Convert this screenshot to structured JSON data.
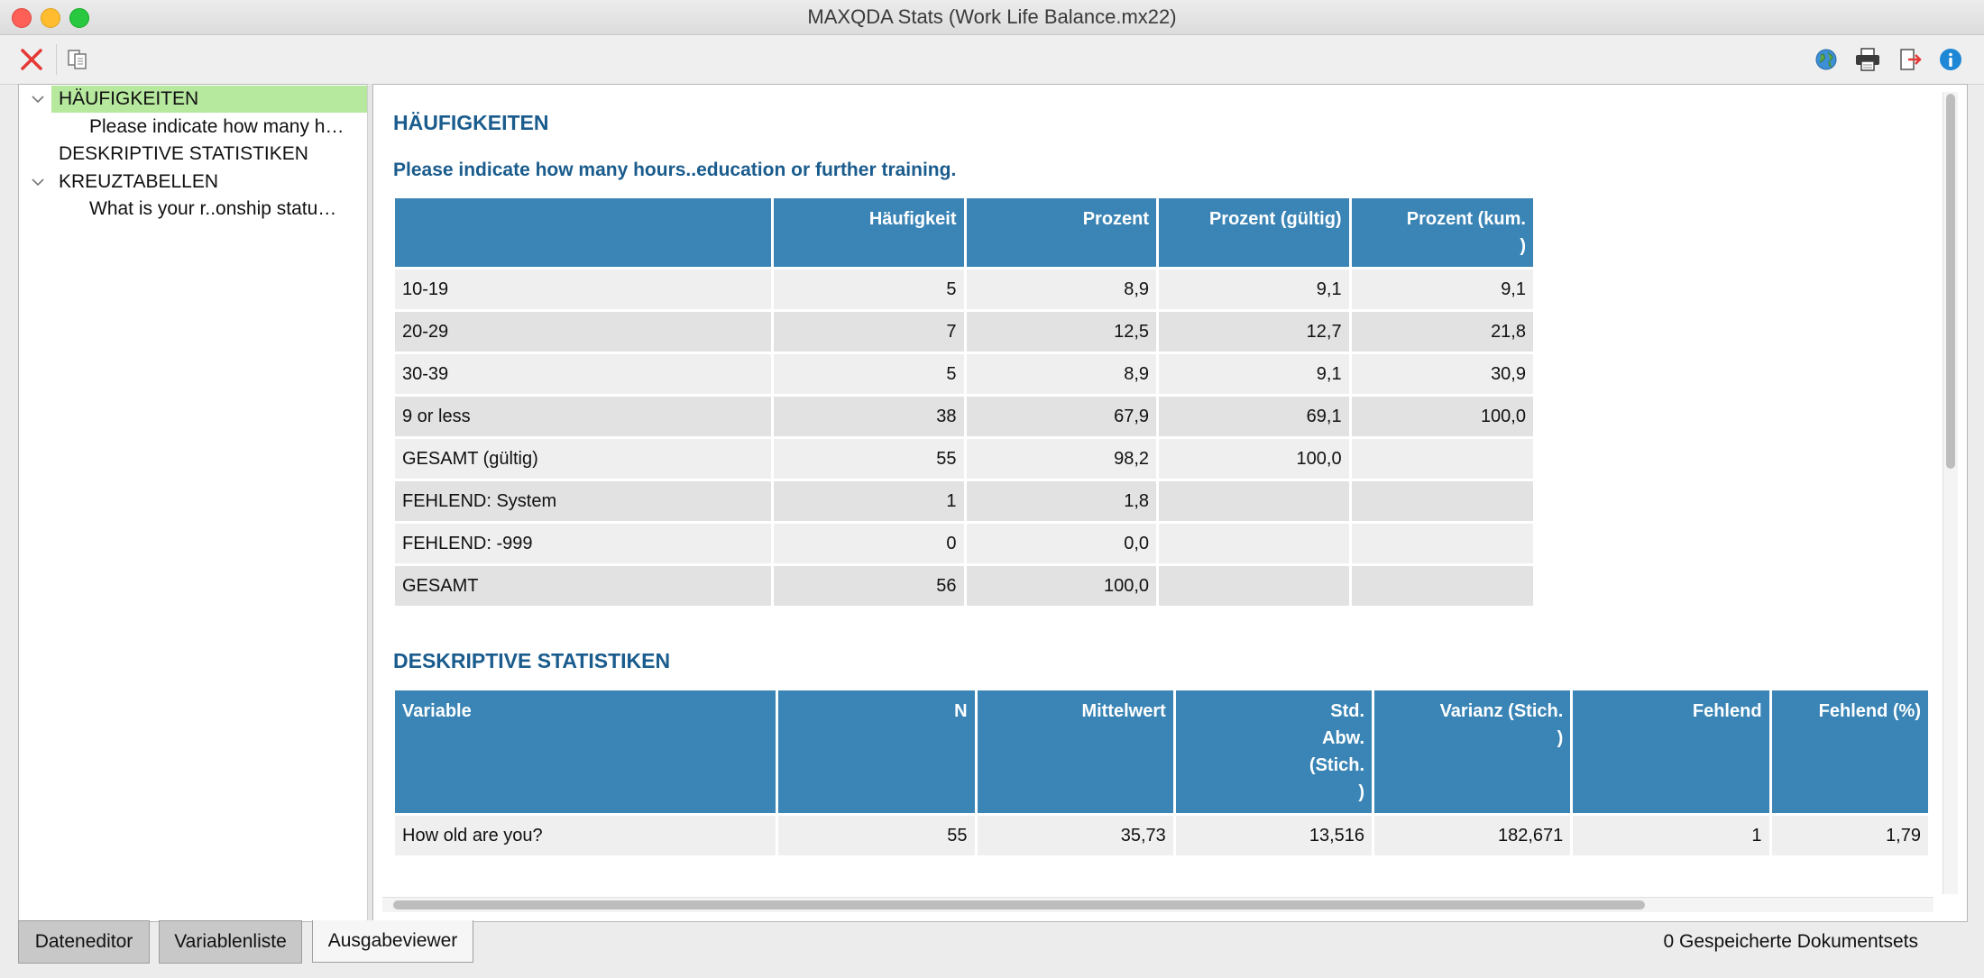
{
  "window": {
    "title": "MAXQDA Stats (Work Life Balance.mx22)"
  },
  "toolbar": {
    "left_icons": [
      "close-x-icon",
      "copy-icon"
    ],
    "right_icons": [
      "globe-icon",
      "print-icon",
      "export-icon",
      "info-icon"
    ],
    "accent": "#e53935"
  },
  "tree": {
    "items": [
      {
        "label": "HÄUFIGKEITEN",
        "selected": true,
        "expanded": true
      },
      {
        "label": "Please indicate how many h…"
      },
      {
        "label": "DESKRIPTIVE STATISTIKEN"
      },
      {
        "label": "KREUZTABELLEN",
        "expanded": true
      },
      {
        "label": "What is your r..onship statu…"
      }
    ]
  },
  "output": {
    "section1_title": "HÄUFIGKEITEN",
    "freq_title": "Please indicate how many hours..education or further training.",
    "freq_headers": [
      "",
      "Häufigkeit",
      "Prozent",
      "Prozent (gültig)",
      "Prozent (kum.\n)"
    ],
    "freq_rows": [
      [
        "10-19",
        "5",
        "8,9",
        "9,1",
        "9,1"
      ],
      [
        "20-29",
        "7",
        "12,5",
        "12,7",
        "21,8"
      ],
      [
        "30-39",
        "5",
        "8,9",
        "9,1",
        "30,9"
      ],
      [
        "9 or less",
        "38",
        "67,9",
        "69,1",
        "100,0"
      ],
      [
        "GESAMT (gültig)",
        "55",
        "98,2",
        "100,0",
        ""
      ],
      [
        "FEHLEND: System",
        "1",
        "1,8",
        "",
        ""
      ],
      [
        "FEHLEND: -999",
        "0",
        "0,0",
        "",
        ""
      ],
      [
        "GESAMT",
        "56",
        "100,0",
        "",
        ""
      ]
    ],
    "section2_title": "DESKRIPTIVE STATISTIKEN",
    "desc_headers": [
      "Variable",
      "N",
      "Mittelwert",
      "Std.\nAbw.\n(Stich.\n)",
      "Varianz (Stich.\n)",
      "Fehlend",
      "Fehlend (%)"
    ],
    "desc_rows": [
      [
        "How old are you?",
        "55",
        "35,73",
        "13,516",
        "182,671",
        "1",
        "1,79"
      ]
    ],
    "header_color": "#3a85b6",
    "title_color": "#1a5c8d"
  },
  "tabs": [
    {
      "label": "Dateneditor",
      "active": false
    },
    {
      "label": "Variablenliste",
      "active": false
    },
    {
      "label": "Ausgabeviewer",
      "active": true
    }
  ],
  "status": {
    "text": "0 Gespeicherte Dokumentsets"
  }
}
